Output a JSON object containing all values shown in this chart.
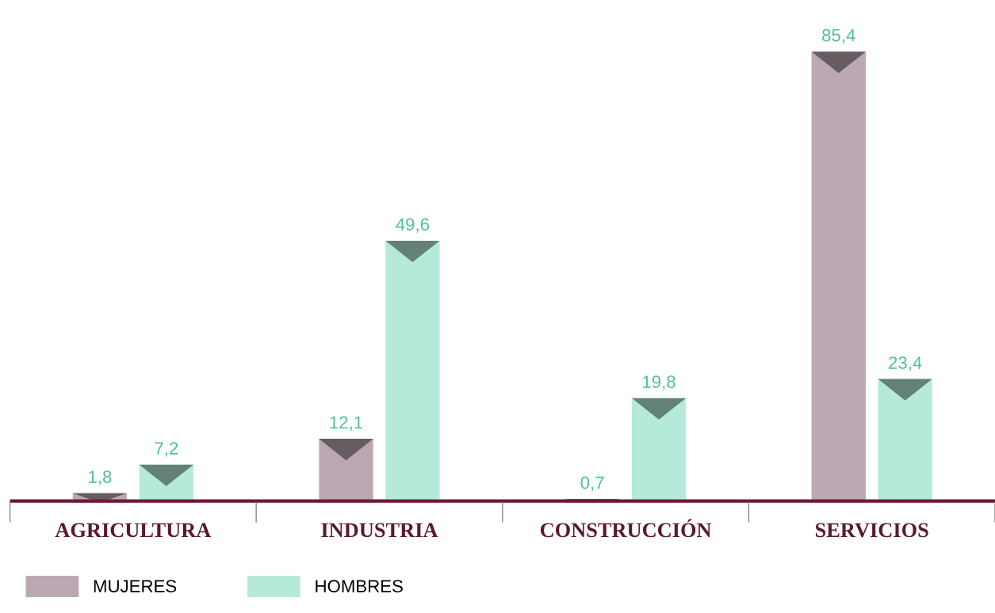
{
  "chart_data": {
    "type": "bar",
    "categories": [
      "AGRICULTURA",
      "INDUSTRIA",
      "CONSTRUCCIÓN",
      "SERVICIOS"
    ],
    "series": [
      {
        "name": "MUJERES",
        "color": "#bba8b2",
        "values": [
          1.8,
          12.1,
          0.7,
          85.4
        ],
        "value_labels": [
          "1,8",
          "12,1",
          "0,7",
          "85,4"
        ]
      },
      {
        "name": "HOMBRES",
        "color": "#b5eadb",
        "values": [
          7.2,
          49.6,
          19.8,
          23.4
        ],
        "value_labels": [
          "7,2",
          "49,6",
          "19,8",
          "23,4"
        ]
      }
    ],
    "legend": "bottom left",
    "tick_labels": "x"
  }
}
